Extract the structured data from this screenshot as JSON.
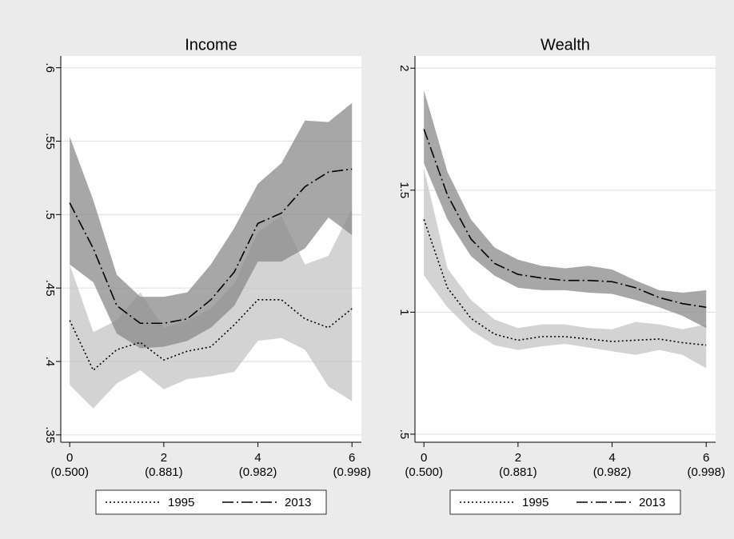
{
  "chart_data": [
    {
      "type": "line",
      "title": "Income",
      "x": [
        0,
        0.5,
        1,
        1.5,
        2,
        2.5,
        3,
        3.5,
        4,
        4.5,
        5,
        5.5,
        6
      ],
      "xlim": [
        -0.19,
        6.2
      ],
      "xticks": [
        0,
        2,
        4,
        6
      ],
      "xtick_sublabels": [
        "(0.500)",
        "(0.881)",
        "(0.982)",
        "(0.998)"
      ],
      "ylim": [
        0.345,
        0.608
      ],
      "yticks": [
        {
          "value": 0.35,
          "label": ".35"
        },
        {
          "value": 0.4,
          "label": ".4"
        },
        {
          "value": 0.45,
          "label": ".45"
        },
        {
          "value": 0.5,
          "label": ".5"
        },
        {
          "value": 0.55,
          "label": ".55"
        },
        {
          "value": 0.6,
          "label": ".6"
        }
      ],
      "grid": true,
      "series": [
        {
          "name": "1995",
          "color": "#000000",
          "dash": "dotted",
          "band_color": "#c4c4c4",
          "values": [
            0.428,
            0.394,
            0.408,
            0.413,
            0.401,
            0.407,
            0.41,
            0.425,
            0.442,
            0.442,
            0.429,
            0.423,
            0.436
          ],
          "lower": [
            0.384,
            0.368,
            0.385,
            0.394,
            0.381,
            0.388,
            0.39,
            0.393,
            0.414,
            0.416,
            0.408,
            0.383,
            0.373
          ],
          "upper": [
            0.466,
            0.42,
            0.428,
            0.447,
            0.423,
            0.428,
            0.436,
            0.453,
            0.488,
            0.499,
            0.466,
            0.472,
            0.504
          ]
        },
        {
          "name": "2013",
          "color": "#000000",
          "dash": "dashdot",
          "band_color": "#8a8a8a",
          "values": [
            0.508,
            0.477,
            0.438,
            0.426,
            0.426,
            0.429,
            0.442,
            0.461,
            0.494,
            0.501,
            0.519,
            0.529,
            0.531
          ],
          "lower": [
            0.466,
            0.454,
            0.419,
            0.409,
            0.41,
            0.414,
            0.423,
            0.438,
            0.468,
            0.468,
            0.477,
            0.498,
            0.486
          ],
          "upper": [
            0.553,
            0.51,
            0.459,
            0.444,
            0.444,
            0.447,
            0.466,
            0.491,
            0.521,
            0.535,
            0.564,
            0.563,
            0.576
          ]
        }
      ]
    },
    {
      "type": "line",
      "title": "Wealth",
      "x": [
        0,
        0.5,
        1,
        1.5,
        2,
        2.5,
        3,
        3.5,
        4,
        4.5,
        5,
        5.5,
        6
      ],
      "xlim": [
        -0.19,
        6.2
      ],
      "xticks": [
        0,
        2,
        4,
        6
      ],
      "xtick_sublabels": [
        "(0.500)",
        "(0.881)",
        "(0.982)",
        "(0.998)"
      ],
      "ylim": [
        0.467,
        2.05
      ],
      "yticks": [
        {
          "value": 0.5,
          "label": ".5"
        },
        1,
        1.5,
        2
      ],
      "grid": true,
      "series": [
        {
          "name": "1995",
          "color": "#000000",
          "dash": "dotted",
          "band_color": "#c4c4c4",
          "values": [
            1.38,
            1.1,
            0.975,
            0.91,
            0.885,
            0.9,
            0.9,
            0.89,
            0.88,
            0.885,
            0.89,
            0.875,
            0.865
          ],
          "lower": [
            1.15,
            1.02,
            0.925,
            0.865,
            0.845,
            0.86,
            0.87,
            0.855,
            0.84,
            0.825,
            0.845,
            0.825,
            0.77
          ],
          "upper": [
            1.59,
            1.18,
            1.05,
            0.97,
            0.935,
            0.95,
            0.95,
            0.935,
            0.93,
            0.96,
            0.95,
            0.93,
            0.95
          ]
        },
        {
          "name": "2013",
          "color": "#000000",
          "dash": "dashdot",
          "band_color": "#8a8a8a",
          "values": [
            1.75,
            1.48,
            1.3,
            1.2,
            1.155,
            1.14,
            1.13,
            1.13,
            1.125,
            1.1,
            1.06,
            1.035,
            1.02
          ],
          "lower": [
            1.61,
            1.38,
            1.23,
            1.15,
            1.1,
            1.09,
            1.09,
            1.08,
            1.075,
            1.05,
            1.02,
            0.985,
            0.935
          ],
          "upper": [
            1.91,
            1.575,
            1.38,
            1.265,
            1.215,
            1.19,
            1.18,
            1.19,
            1.175,
            1.13,
            1.09,
            1.08,
            1.09
          ]
        }
      ]
    }
  ]
}
